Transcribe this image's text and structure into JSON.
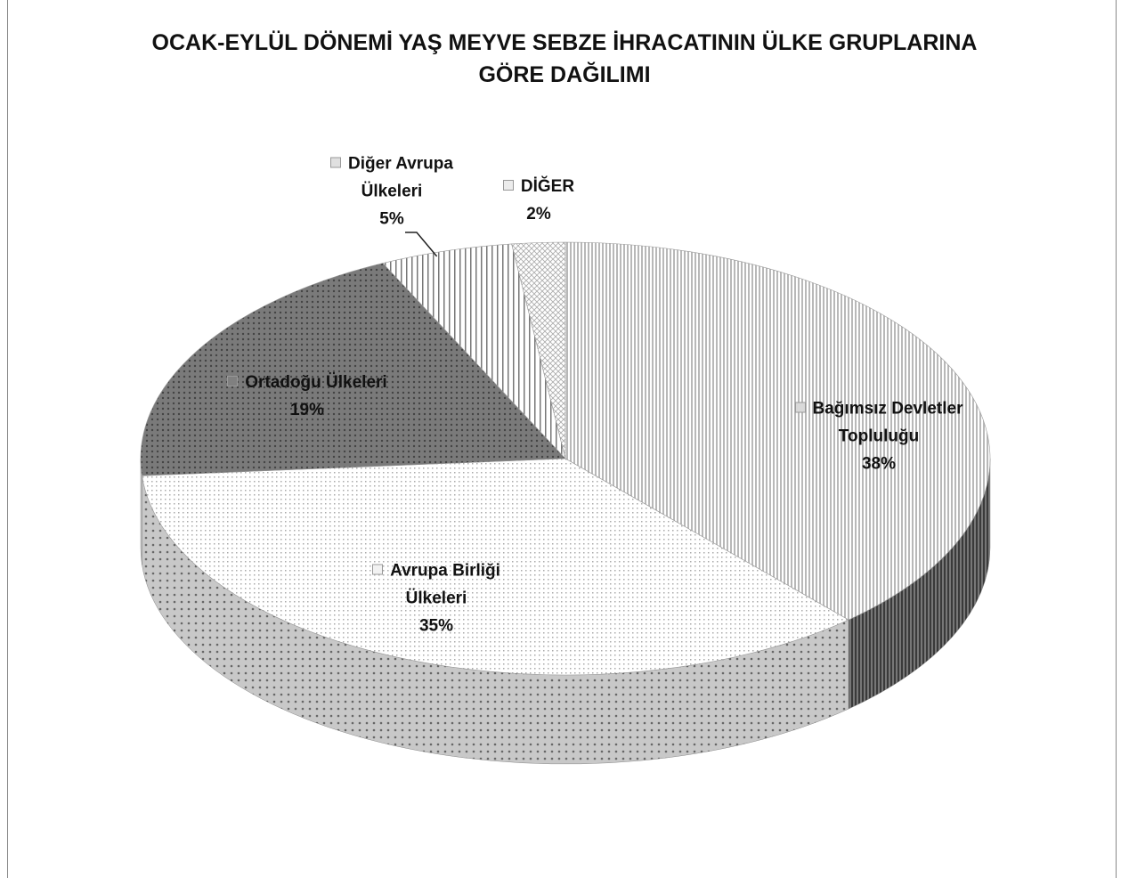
{
  "chart_data": {
    "type": "pie",
    "title": "OCAK-EYLÜL DÖNEMİ YAŞ MEYVE SEBZE İHRACATININ ÜLKE GRUPLARINA GÖRE DAĞILIMI",
    "categories": [
      "Bağımsız Devletler Topluluğu",
      "Avrupa Birliği Ülkeleri",
      "Ortadoğu Ülkeleri",
      "Diğer Avrupa Ülkeleri",
      "DİĞER"
    ],
    "values": [
      38,
      35,
      19,
      5,
      2
    ],
    "value_labels": [
      "38%",
      "35%",
      "19%",
      "5%",
      "2%"
    ],
    "colors": [
      "#d9d9d9",
      "#f2f2f2",
      "#808080",
      "#e0e0e0",
      "#ececec"
    ]
  }
}
